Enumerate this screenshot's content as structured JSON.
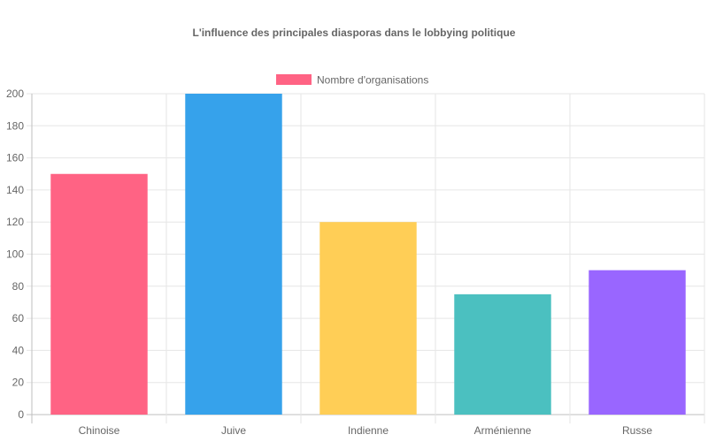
{
  "chart_data": {
    "type": "bar",
    "title": "L'influence des principales diasporas dans le lobbying politique",
    "categories": [
      "Chinoise",
      "Juive",
      "Indienne",
      "Arménienne",
      "Russe"
    ],
    "series": [
      {
        "name": "Nombre d'organisations",
        "values": [
          150,
          200,
          120,
          75,
          90
        ]
      }
    ],
    "bar_colors": [
      "#ff6384",
      "#36a2eb",
      "#ffce56",
      "#4bc0c0",
      "#9966ff"
    ],
    "legend_color": "#ff6384",
    "ylim": [
      0,
      200
    ],
    "yticks": [
      0,
      20,
      40,
      60,
      80,
      100,
      120,
      140,
      160,
      180,
      200
    ],
    "grid": true,
    "legend_position": "top"
  }
}
